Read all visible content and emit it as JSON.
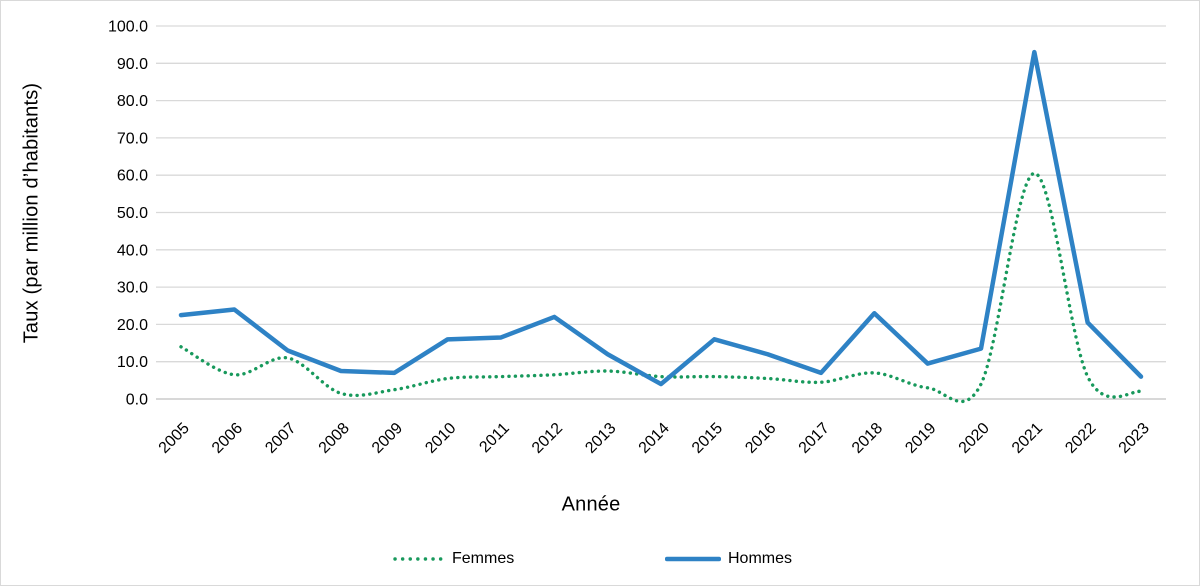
{
  "figure": {
    "background": "#ffffff",
    "border_color": "#d9d9d9",
    "gridline_color": "#d9d9d9",
    "axis_line_color": "#c0c0c0",
    "text_color": "#000000"
  },
  "chart_data": {
    "type": "line",
    "title": "",
    "xlabel": "Année",
    "ylabel": "Taux (par million d’habitants)",
    "categories": [
      "2005",
      "2006",
      "2007",
      "2008",
      "2009",
      "2010",
      "2011",
      "2012",
      "2013",
      "2014",
      "2015",
      "2016",
      "2017",
      "2018",
      "2019",
      "2020",
      "2021",
      "2022",
      "2023"
    ],
    "ylim": [
      0,
      100
    ],
    "ytick_step": 10,
    "ytick_decimals": 1,
    "grid": "horizontal",
    "legend_position": "bottom-center",
    "series": [
      {
        "name": "Femmes",
        "color": "#18995c",
        "line_style": "dotted",
        "values": [
          14,
          6.5,
          11,
          1.5,
          2.5,
          5.5,
          6,
          6.5,
          7.5,
          6,
          6,
          5.5,
          4.5,
          7,
          3,
          4,
          60.5,
          6,
          2
        ]
      },
      {
        "name": "Hommes",
        "color": "#2e82c5",
        "line_style": "solid",
        "values": [
          22.5,
          24,
          13,
          7.5,
          7,
          16,
          16.5,
          22,
          12,
          4,
          16,
          12,
          7,
          23,
          9.5,
          13.5,
          93,
          20.5,
          6
        ]
      }
    ]
  }
}
